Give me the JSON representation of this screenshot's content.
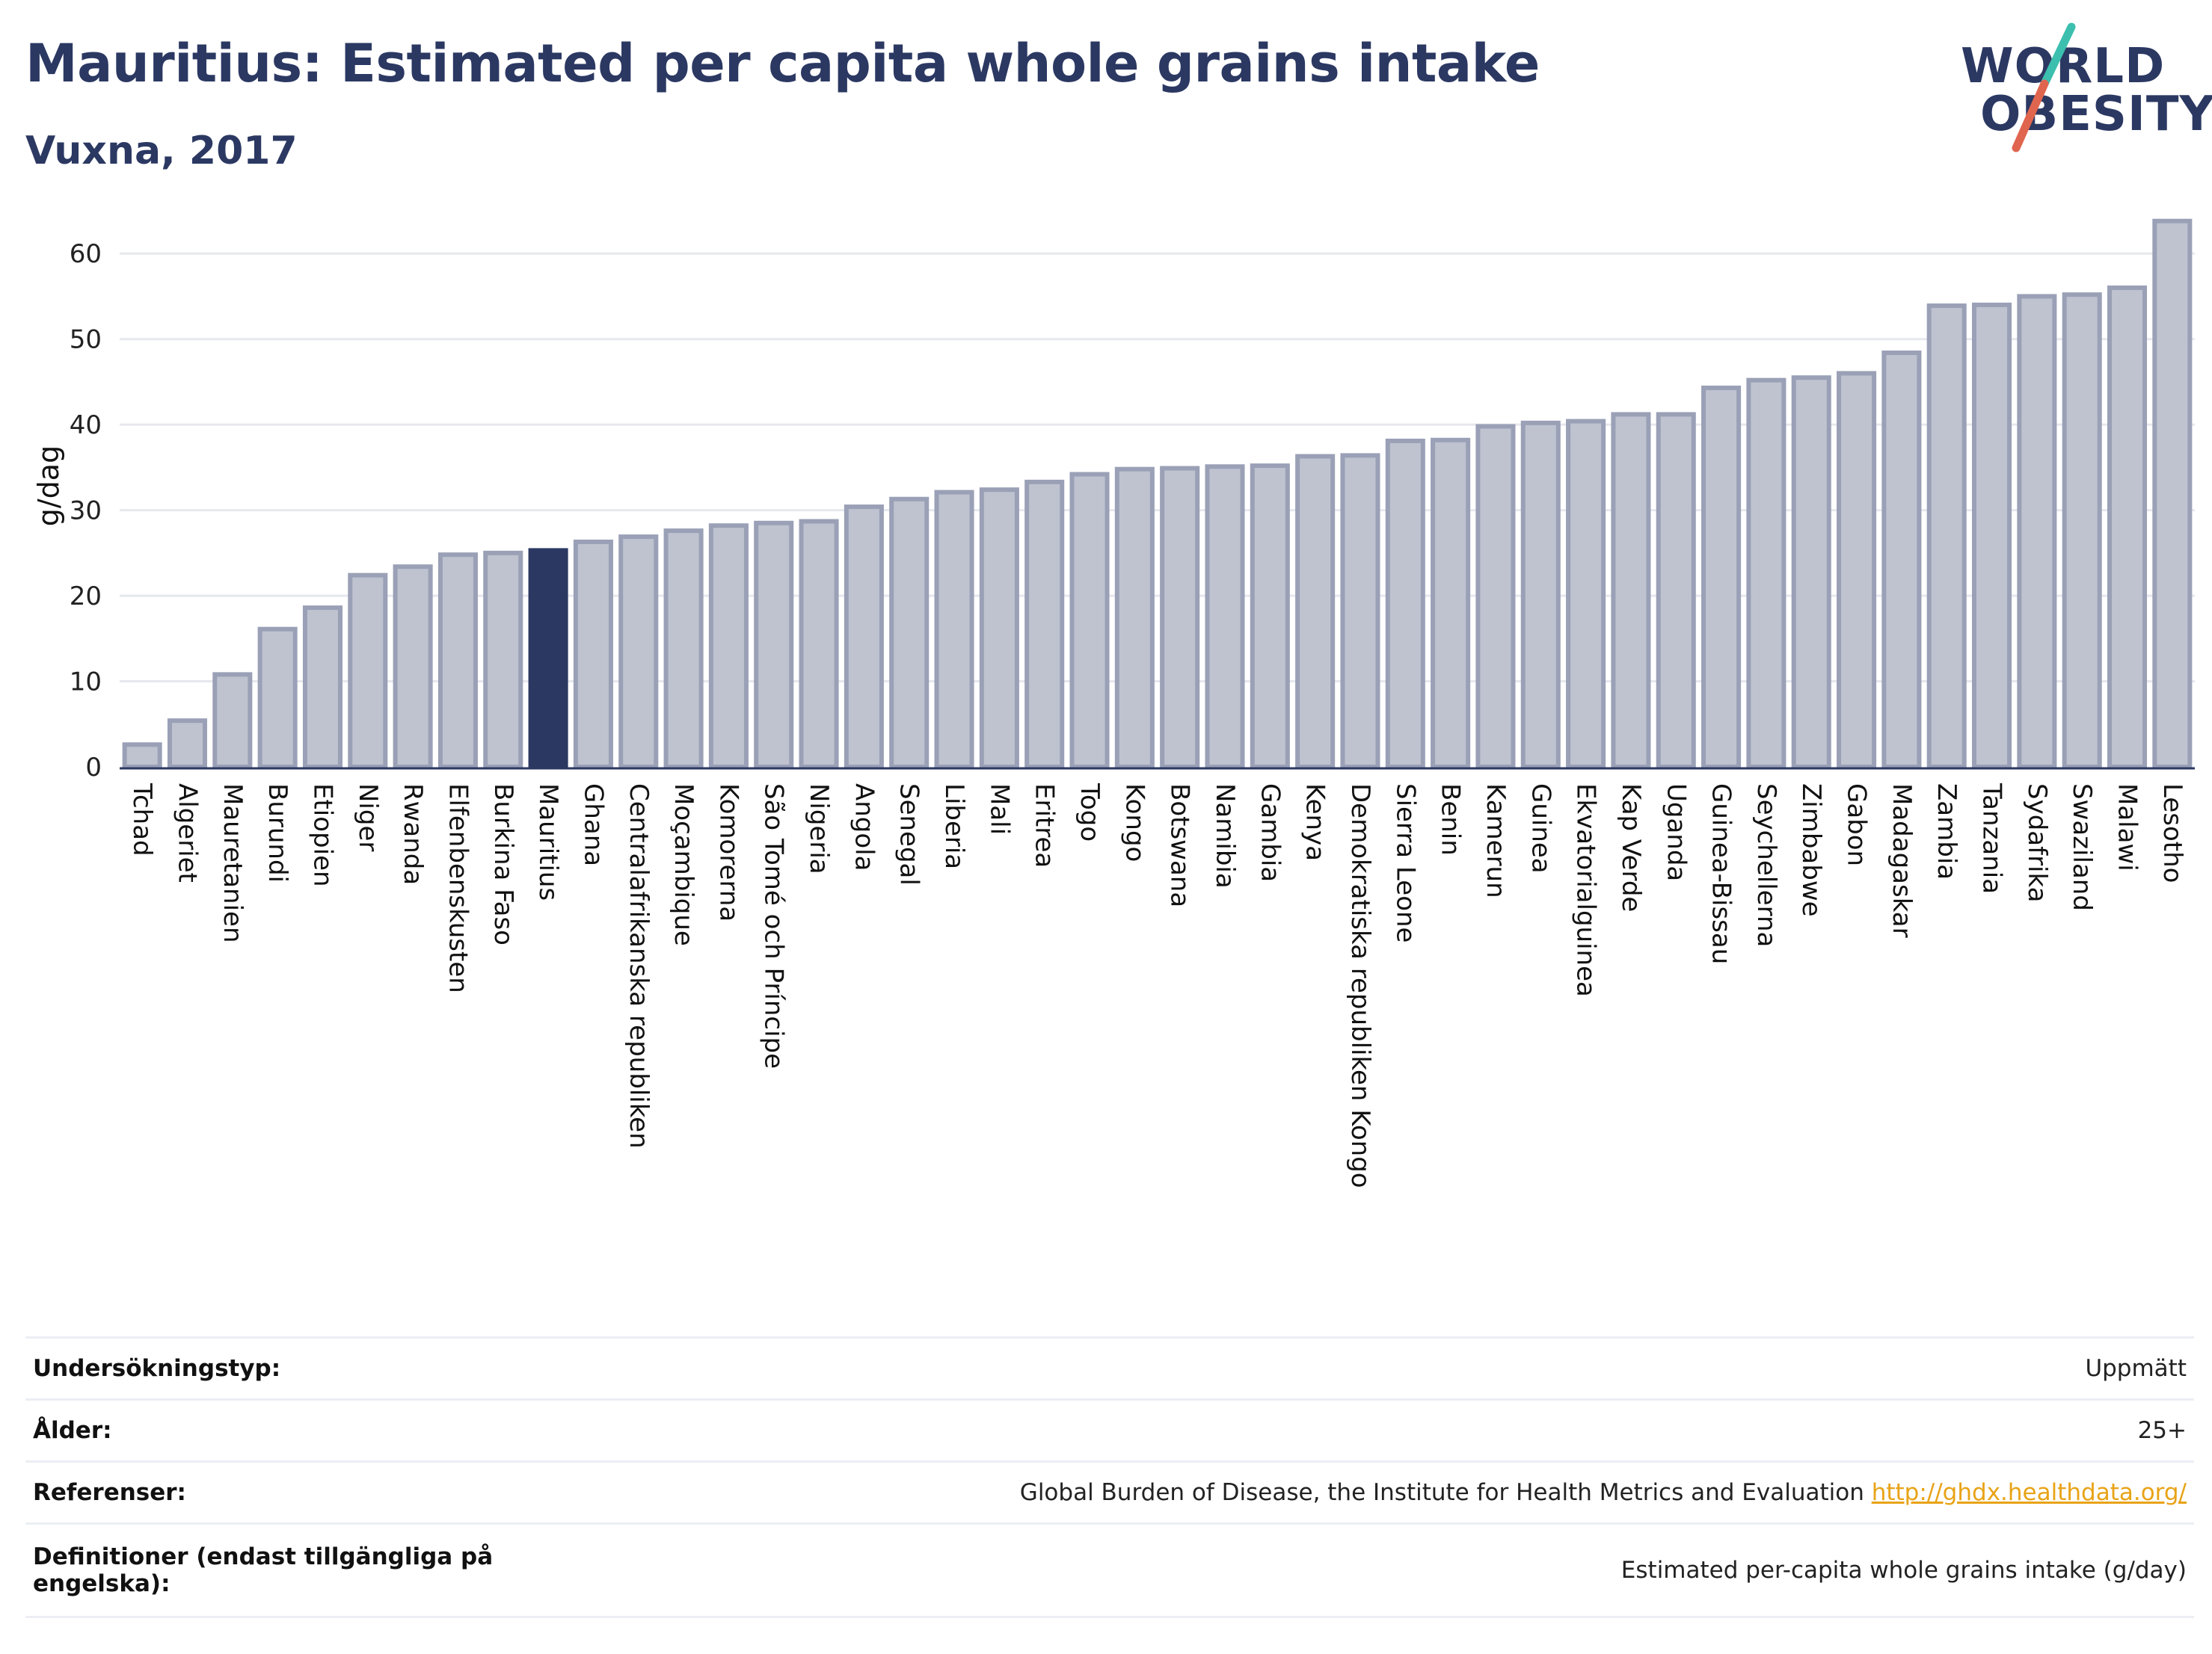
{
  "title": "Mauritius: Estimated per capita whole grains intake",
  "subtitle": "Vuxna, 2017",
  "logo": {
    "line1": "WORLD",
    "line2": "OBESITY",
    "colors": {
      "text": "#2b3862",
      "slash_top": "#3cbfae",
      "slash_bottom": "#e0654f"
    }
  },
  "chart_data": {
    "type": "bar",
    "ylabel": "g/dag",
    "ylim": [
      0,
      65
    ],
    "yticks": [
      0,
      10,
      20,
      30,
      40,
      50,
      60
    ],
    "grid": true,
    "highlight": "Mauritius",
    "colors": {
      "bar": "#bfc3d0",
      "bar_edge": "#9aa0b6",
      "highlight": "#2b3862",
      "axis": "#2b3862",
      "grid": "#e6e8ee"
    },
    "categories": [
      "Tchad",
      "Algeriet",
      "Mauretanien",
      "Burundi",
      "Etiopien",
      "Niger",
      "Rwanda",
      "Elfenbenskusten",
      "Burkina Faso",
      "Mauritius",
      "Ghana",
      "Centralafrikanska republiken",
      "Moçambique",
      "Komorerna",
      "São Tomé och Príncipe",
      "Nigeria",
      "Angola",
      "Senegal",
      "Liberia",
      "Mali",
      "Eritrea",
      "Togo",
      "Kongo",
      "Botswana",
      "Namibia",
      "Gambia",
      "Kenya",
      "Demokratiska republiken Kongo",
      "Sierra Leone",
      "Benin",
      "Kamerun",
      "Guinea",
      "Ekvatorialguinea",
      "Kap Verde",
      "Uganda",
      "Guinea-Bissau",
      "Seychellerna",
      "Zimbabwe",
      "Gabon",
      "Madagaskar",
      "Zambia",
      "Tanzania",
      "Sydafrika",
      "Swaziland",
      "Malawi",
      "Lesotho"
    ],
    "values": [
      2.6,
      5.4,
      10.8,
      16.1,
      18.6,
      22.4,
      23.4,
      24.8,
      25.0,
      25.3,
      26.3,
      26.9,
      27.6,
      28.2,
      28.5,
      28.7,
      30.4,
      31.3,
      32.1,
      32.4,
      33.3,
      34.2,
      34.8,
      34.9,
      35.1,
      35.2,
      36.3,
      36.4,
      38.1,
      38.2,
      39.8,
      40.2,
      40.4,
      41.2,
      41.2,
      44.3,
      45.2,
      45.5,
      46.0,
      48.4,
      53.9,
      54.0,
      55.0,
      55.2,
      56.0,
      63.8
    ]
  },
  "info": [
    {
      "label": "Undersökningstyp:",
      "value": "Uppmätt"
    },
    {
      "label": "Ålder:",
      "value": "25+"
    },
    {
      "label": "Referenser:",
      "value": "Global Burden of Disease, the Institute for Health Metrics and Evaluation",
      "link": "http://ghdx.healthdata.org/"
    },
    {
      "label": "Definitioner (endast tillgängliga på engelska):",
      "value": "Estimated per-capita whole grains intake (g/day)"
    }
  ]
}
